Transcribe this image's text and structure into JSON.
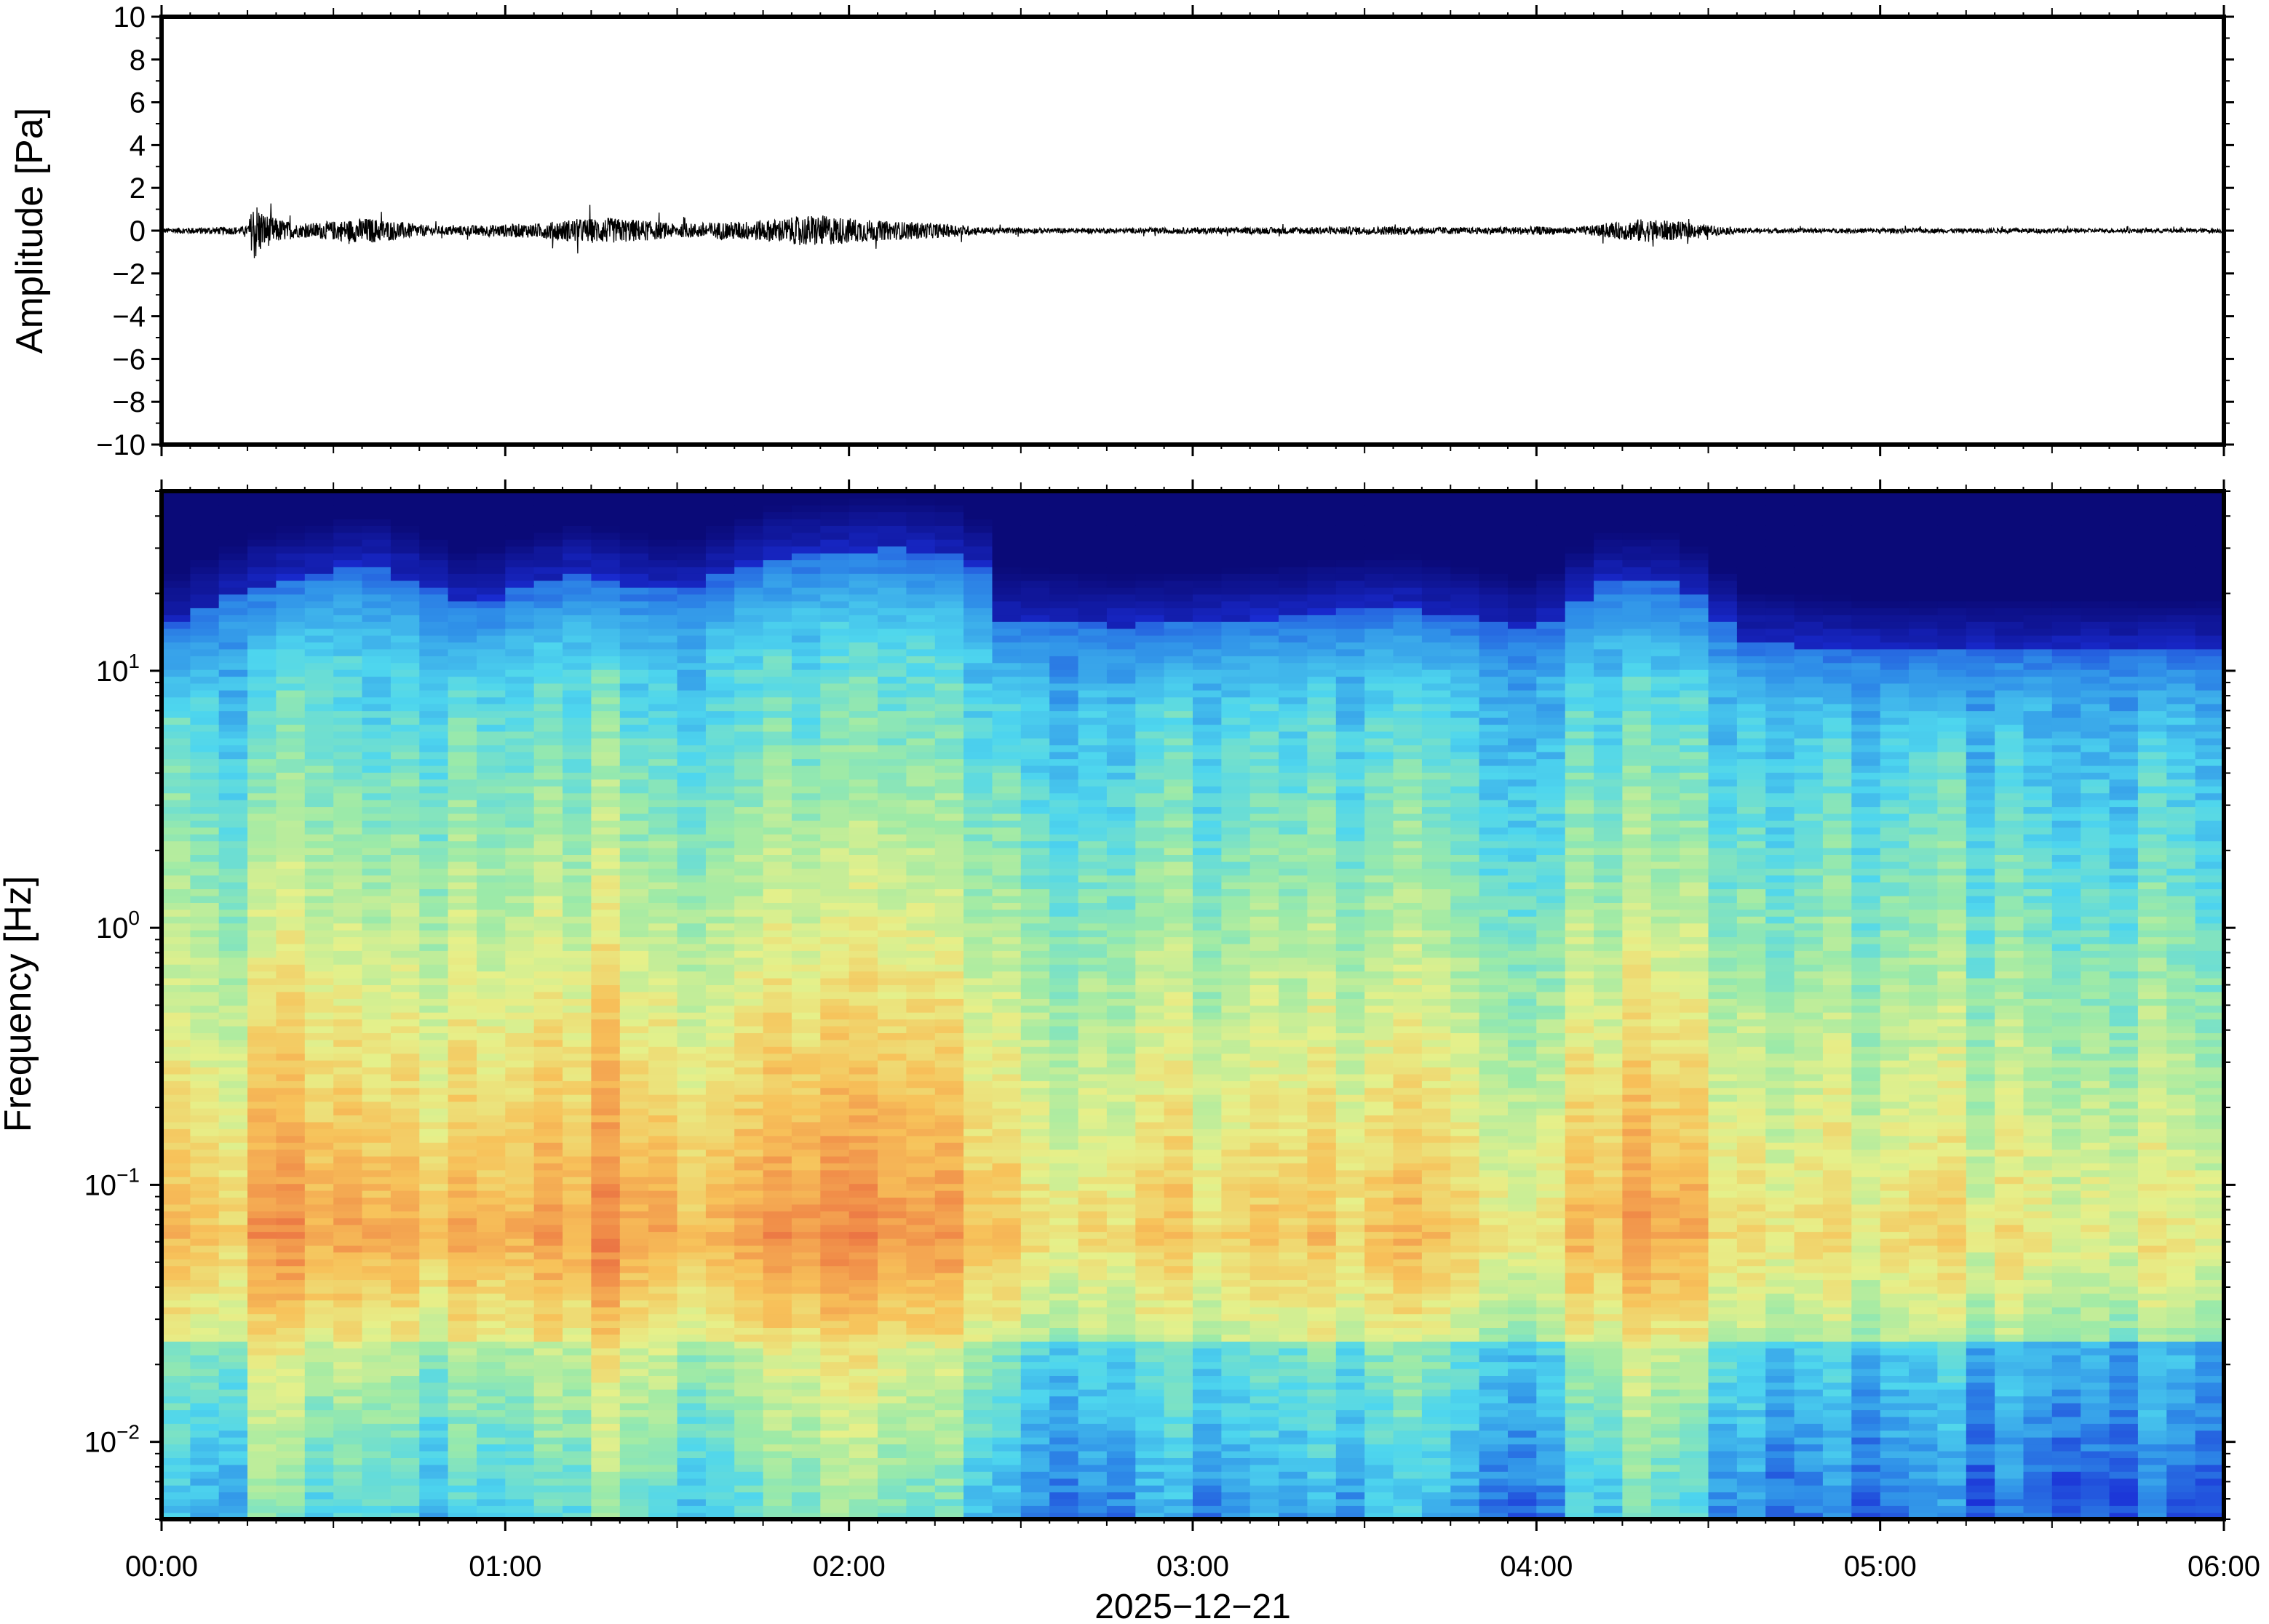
{
  "chart_data": [
    {
      "type": "line",
      "panel": "waveform",
      "ylabel": "Amplitude [Pa]",
      "ylim": [
        -10,
        10
      ],
      "yticks": [
        10,
        8,
        6,
        4,
        2,
        0,
        -2,
        -4,
        -6,
        -8,
        -10
      ],
      "ytick_labels": [
        "10",
        "8",
        "6",
        "4",
        "2",
        "0",
        "−2",
        "−4",
        "−6",
        "−8",
        "−10"
      ],
      "xlim_hours": [
        0,
        6
      ],
      "line_color": "#000000",
      "envelope": {
        "t_hours": [
          0.0,
          0.25,
          0.27,
          0.3,
          0.33,
          0.4,
          0.5,
          0.6,
          0.7,
          0.8,
          0.9,
          1.0,
          1.1,
          1.2,
          1.3,
          1.4,
          1.5,
          1.6,
          1.7,
          1.8,
          1.9,
          2.0,
          2.1,
          2.2,
          2.3,
          2.4,
          2.6,
          2.8,
          3.0,
          3.2,
          3.4,
          3.6,
          3.8,
          4.0,
          4.1,
          4.2,
          4.3,
          4.4,
          4.5,
          4.6,
          4.8,
          5.0,
          5.2,
          5.4,
          5.6,
          5.8,
          6.0
        ],
        "amplitude_pa": [
          0.12,
          0.2,
          1.5,
          0.8,
          0.6,
          0.3,
          0.45,
          0.6,
          0.4,
          0.2,
          0.25,
          0.3,
          0.35,
          0.55,
          0.6,
          0.5,
          0.3,
          0.4,
          0.45,
          0.55,
          0.75,
          0.6,
          0.45,
          0.4,
          0.3,
          0.15,
          0.12,
          0.12,
          0.15,
          0.15,
          0.18,
          0.2,
          0.15,
          0.2,
          0.15,
          0.3,
          0.55,
          0.45,
          0.25,
          0.12,
          0.1,
          0.12,
          0.1,
          0.12,
          0.1,
          0.1,
          0.1
        ]
      }
    },
    {
      "type": "heatmap",
      "panel": "spectrogram",
      "ylabel": "Frequency [Hz]",
      "yscale": "log",
      "ylim_hz": [
        0.005,
        50
      ],
      "yticks_hz": [
        0.01,
        0.1,
        1,
        10
      ],
      "ytick_labels": [
        {
          "base": "10",
          "exp": "−2"
        },
        {
          "base": "10",
          "exp": "−1"
        },
        {
          "base": "10",
          "exp": "0"
        },
        {
          "base": "10",
          "exp": "1"
        }
      ],
      "colormap": [
        "#0a0a78",
        "#1a2dd6",
        "#2f8fe8",
        "#4ed6ee",
        "#9ceaa8",
        "#e6f08a",
        "#f7c25a",
        "#f08a48",
        "#e04a3c"
      ],
      "activity_profile": {
        "t_hours": [
          0.0,
          0.2,
          0.25,
          0.35,
          0.45,
          0.55,
          0.65,
          0.8,
          1.0,
          1.15,
          1.3,
          1.45,
          1.6,
          1.75,
          1.9,
          2.05,
          2.2,
          2.35,
          2.4,
          2.6,
          2.8,
          3.0,
          3.2,
          3.4,
          3.6,
          3.8,
          4.0,
          4.15,
          4.25,
          4.35,
          4.45,
          4.55,
          4.7,
          4.9,
          5.1,
          5.3,
          5.5,
          5.7,
          5.9,
          6.0
        ],
        "relative_level": [
          0.45,
          0.5,
          0.95,
          0.85,
          0.6,
          0.75,
          0.8,
          0.55,
          0.6,
          0.65,
          0.85,
          0.8,
          0.6,
          0.7,
          0.9,
          0.85,
          0.7,
          0.75,
          0.45,
          0.4,
          0.4,
          0.42,
          0.4,
          0.45,
          0.5,
          0.45,
          0.38,
          0.55,
          0.75,
          0.8,
          0.7,
          0.5,
          0.35,
          0.3,
          0.3,
          0.28,
          0.3,
          0.28,
          0.25,
          0.25
        ]
      },
      "upper_cutoff_hz": {
        "t_hours": [
          0.0,
          0.3,
          0.6,
          0.9,
          1.2,
          1.5,
          1.8,
          2.1,
          2.35,
          2.45,
          2.8,
          3.2,
          3.6,
          4.0,
          4.2,
          4.4,
          4.6,
          5.0,
          5.5,
          6.0
        ],
        "hz": [
          14,
          22,
          26,
          18,
          24,
          20,
          28,
          30,
          28,
          16,
          15,
          16,
          18,
          14,
          22,
          22,
          13,
          12,
          12,
          12
        ]
      }
    }
  ],
  "x_axis": {
    "tick_labels": [
      "00:00",
      "01:00",
      "02:00",
      "03:00",
      "04:00",
      "05:00",
      "06:00"
    ],
    "date_label": "2025−12−21"
  }
}
